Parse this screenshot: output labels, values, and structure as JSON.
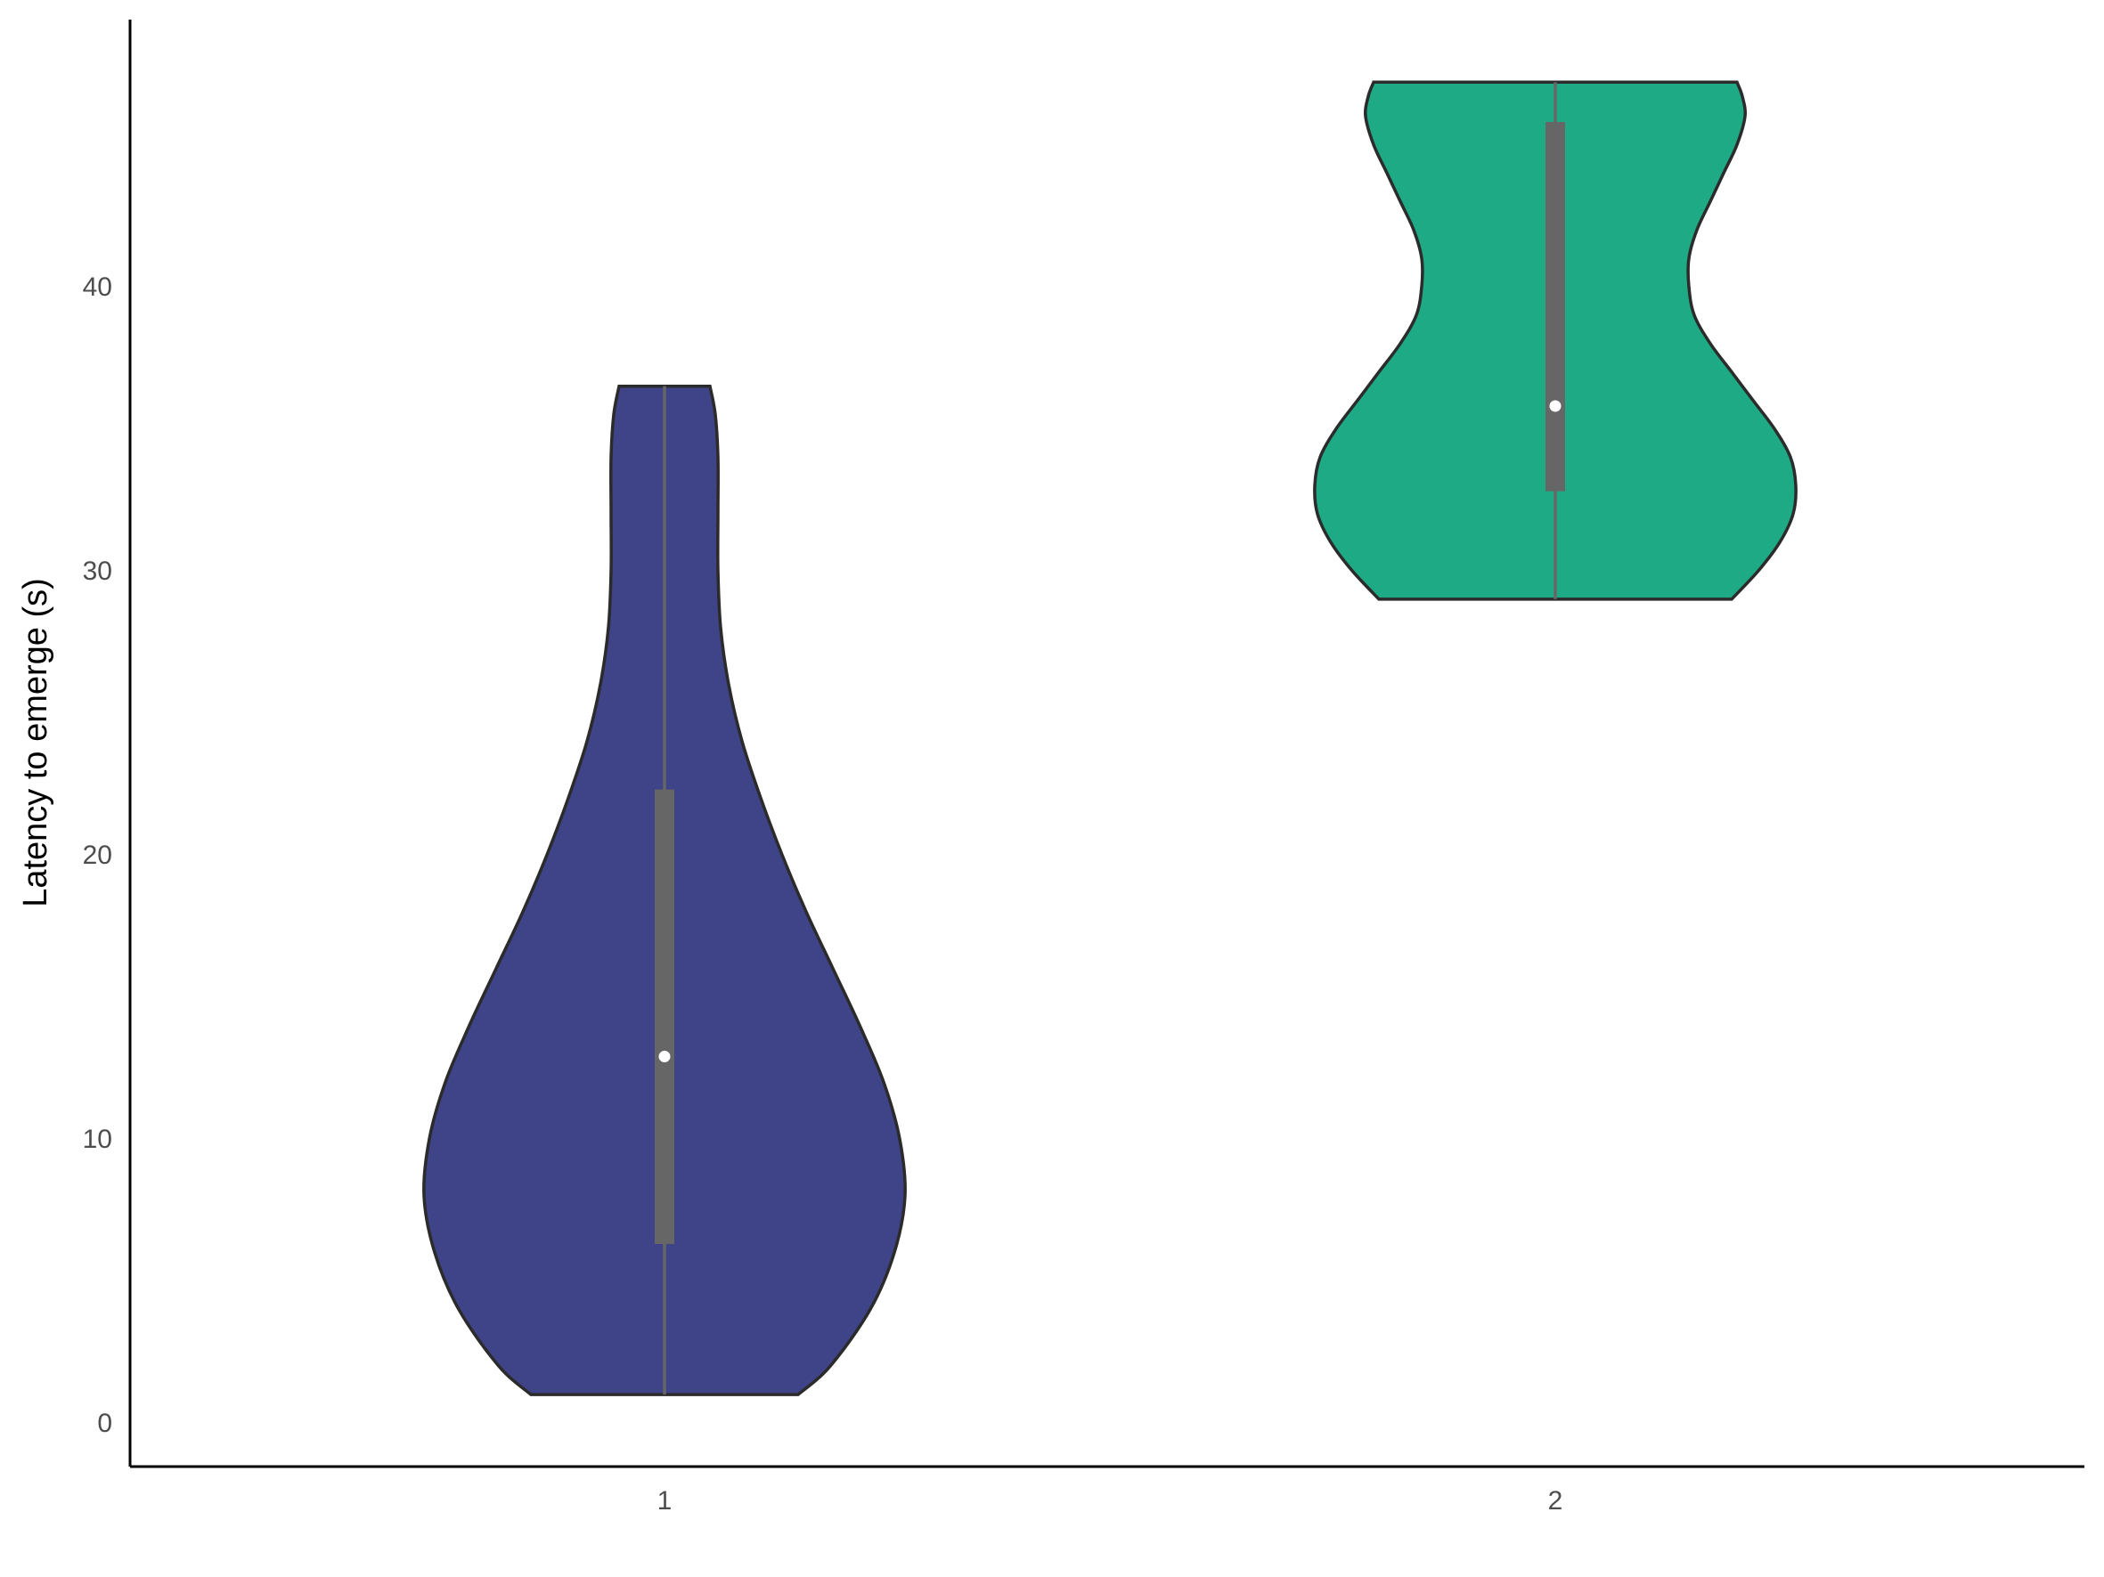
{
  "chart_data": {
    "type": "violin",
    "title": "",
    "xlabel": "",
    "ylabel": "Latency to emerge (s)",
    "ylim": [
      -1.5,
      49.5
    ],
    "yticks": [
      0,
      10,
      20,
      30,
      40
    ],
    "categories": [
      "1",
      "2"
    ],
    "grid": false,
    "legend": "none",
    "series": [
      {
        "category": "1",
        "color": "#3f4387",
        "min": 1,
        "max": 36.5,
        "q1": 6.3,
        "median": 12.9,
        "q3": 22.3,
        "density": [
          [
            1,
            0.5
          ],
          [
            2,
            0.62
          ],
          [
            4,
            0.77
          ],
          [
            6,
            0.86
          ],
          [
            8,
            0.9
          ],
          [
            10,
            0.88
          ],
          [
            12,
            0.82
          ],
          [
            14,
            0.73
          ],
          [
            16,
            0.63
          ],
          [
            18,
            0.53
          ],
          [
            20,
            0.44
          ],
          [
            22,
            0.36
          ],
          [
            24,
            0.29
          ],
          [
            26,
            0.24
          ],
          [
            28,
            0.21
          ],
          [
            30,
            0.2
          ],
          [
            32,
            0.2
          ],
          [
            34,
            0.2
          ],
          [
            35.5,
            0.19
          ],
          [
            36.5,
            0.17
          ]
        ]
      },
      {
        "category": "2",
        "color": "#1eaa85",
        "min": 29,
        "max": 47.2,
        "q1": 32.8,
        "median": 35.8,
        "q3": 45.8,
        "density": [
          [
            29,
            0.66
          ],
          [
            30,
            0.76
          ],
          [
            31,
            0.84
          ],
          [
            32,
            0.89
          ],
          [
            33,
            0.9
          ],
          [
            34,
            0.88
          ],
          [
            35,
            0.82
          ],
          [
            36,
            0.74
          ],
          [
            37,
            0.66
          ],
          [
            38,
            0.58
          ],
          [
            39,
            0.52
          ],
          [
            40,
            0.5
          ],
          [
            41,
            0.5
          ],
          [
            42,
            0.53
          ],
          [
            43,
            0.58
          ],
          [
            44,
            0.63
          ],
          [
            45,
            0.68
          ],
          [
            46,
            0.71
          ],
          [
            46.7,
            0.7
          ],
          [
            47.2,
            0.68
          ]
        ]
      }
    ]
  }
}
